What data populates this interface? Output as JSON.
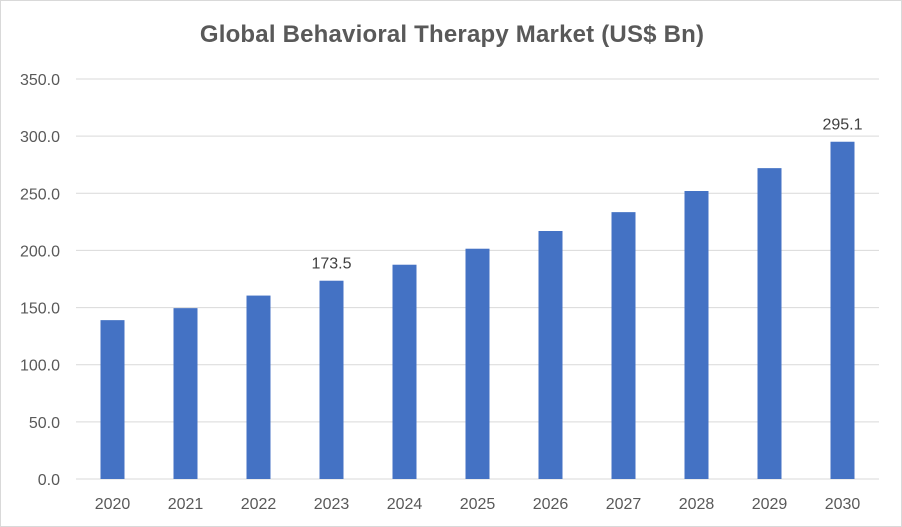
{
  "chart_data": {
    "type": "bar",
    "title": "Global Behavioral Therapy Market (US$ Bn)",
    "xlabel": "",
    "ylabel": "",
    "categories": [
      "2020",
      "2021",
      "2022",
      "2023",
      "2024",
      "2025",
      "2026",
      "2027",
      "2028",
      "2029",
      "2030"
    ],
    "series": [
      {
        "values": [
          139.0,
          149.5,
          160.5,
          173.5,
          187.5,
          201.5,
          217.0,
          233.5,
          252.0,
          272.0,
          295.1
        ]
      }
    ],
    "ylim": [
      0,
      350
    ],
    "y_ticks": [
      "0.0",
      "50.0",
      "100.0",
      "150.0",
      "200.0",
      "250.0",
      "300.0",
      "350.0"
    ],
    "data_labels": [
      {
        "category": "2023",
        "text": "173.5"
      },
      {
        "category": "2030",
        "text": "295.1"
      }
    ],
    "grid": true,
    "legend": "none",
    "bar_color": "#4472c4",
    "grid_color": "#d9d9d9"
  }
}
